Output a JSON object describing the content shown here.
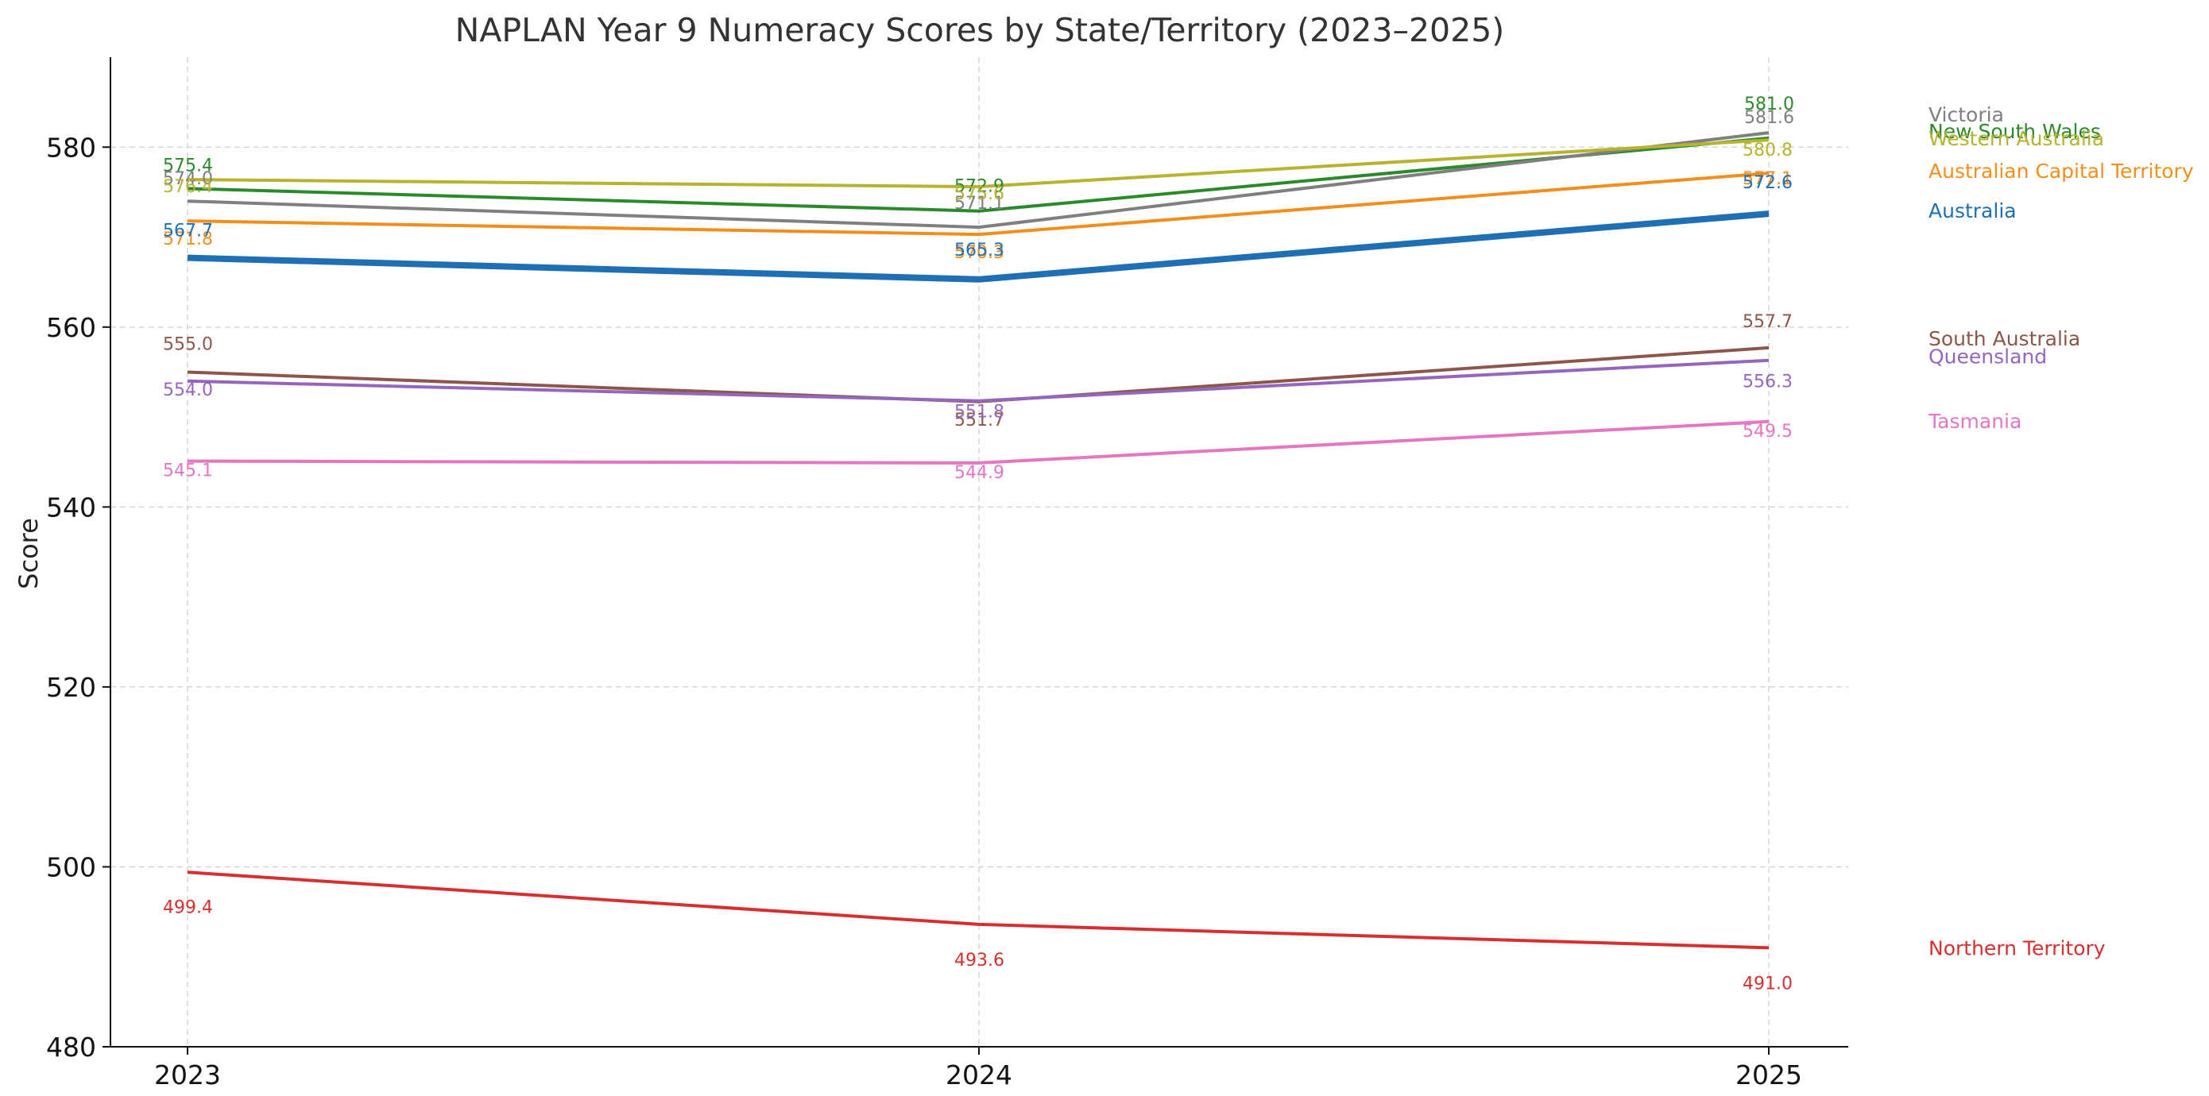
{
  "chart_data": {
    "type": "line",
    "title": "NAPLAN Year 9 Numeracy Scores by State/Territory (2023–2025)",
    "xlabel": "",
    "ylabel": "Score",
    "x": [
      "2023",
      "2024",
      "2025"
    ],
    "ylim": [
      480,
      590
    ],
    "yticks": [
      480,
      500,
      520,
      540,
      560,
      580
    ],
    "grid": true,
    "legend": "direct labels at right of each line",
    "series": [
      {
        "name": "Australia",
        "values": [
          567.7,
          565.3,
          572.6
        ],
        "labels": [
          "567.7",
          "565.3",
          "572.6"
        ],
        "color": "#1f6fb4",
        "emphasis": true
      },
      {
        "name": "New South Wales",
        "values": [
          575.4,
          572.9,
          581.0
        ],
        "labels": [
          "575.4",
          "572.9",
          "581.0"
        ],
        "color": "#2a8a2a"
      },
      {
        "name": "Victoria",
        "values": [
          574.0,
          571.1,
          581.6
        ],
        "labels": [
          "574.0",
          "571.1",
          "581.6"
        ],
        "color": "#7f7f7f"
      },
      {
        "name": "Western Australia",
        "values": [
          576.4,
          575.6,
          580.8
        ],
        "labels": [
          "576.4",
          "575.6",
          "580.8"
        ],
        "color": "#b5b32f"
      },
      {
        "name": "Australian Capital Territory",
        "values": [
          571.8,
          570.3,
          577.1
        ],
        "labels": [
          "571.8",
          "570.3",
          "577.1"
        ],
        "color": "#f28e1c"
      },
      {
        "name": "South Australia",
        "values": [
          555.0,
          551.7,
          557.7
        ],
        "labels": [
          "555.0",
          "551.7",
          "557.7"
        ],
        "color": "#8c564b"
      },
      {
        "name": "Queensland",
        "values": [
          554.0,
          551.8,
          556.3
        ],
        "labels": [
          "554.0",
          "551.8",
          "556.3"
        ],
        "color": "#9467bd"
      },
      {
        "name": "Tasmania",
        "values": [
          545.1,
          544.9,
          549.5
        ],
        "labels": [
          "545.1",
          "544.9",
          "549.5"
        ],
        "color": "#e377c2"
      },
      {
        "name": "Northern Territory",
        "values": [
          499.4,
          493.6,
          491.0
        ],
        "labels": [
          "499.4",
          "493.6",
          "491.0"
        ],
        "color": "#d62f2f"
      }
    ]
  }
}
